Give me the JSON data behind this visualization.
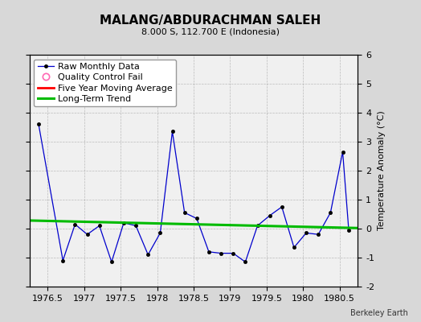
{
  "title": "MALANG/ABDURACHMAN SALEH",
  "subtitle": "8.000 S, 112.700 E (Indonesia)",
  "ylabel": "Temperature Anomaly (°C)",
  "credit": "Berkeley Earth",
  "xlim": [
    1976.25,
    1980.75
  ],
  "ylim": [
    -2,
    6
  ],
  "yticks": [
    -2,
    -1,
    0,
    1,
    2,
    3,
    4,
    5,
    6
  ],
  "xticks": [
    1976.5,
    1977,
    1977.5,
    1978,
    1978.5,
    1979,
    1979.5,
    1980,
    1980.5
  ],
  "background_color": "#d8d8d8",
  "plot_bg_color": "#f0f0f0",
  "raw_x": [
    1976.375,
    1976.708,
    1976.875,
    1977.042,
    1977.208,
    1977.375,
    1977.542,
    1977.708,
    1977.875,
    1978.042,
    1978.208,
    1978.375,
    1978.542,
    1978.708,
    1978.875,
    1979.042,
    1979.208,
    1979.375,
    1979.542,
    1979.708,
    1979.875,
    1980.042,
    1980.208,
    1980.375,
    1980.542,
    1980.625
  ],
  "raw_y": [
    3.6,
    -1.1,
    0.15,
    -0.2,
    0.1,
    -1.15,
    0.2,
    0.1,
    -0.9,
    -0.15,
    3.35,
    0.55,
    0.35,
    -0.8,
    -0.85,
    -0.85,
    -1.15,
    0.1,
    0.45,
    0.75,
    -0.65,
    -0.15,
    -0.2,
    0.55,
    2.65,
    -0.05
  ],
  "trend_x": [
    1976.25,
    1980.75
  ],
  "trend_y": [
    0.28,
    0.02
  ],
  "raw_color": "#0000cc",
  "trend_color": "#00bb00",
  "moving_avg_color": "#ff0000",
  "qc_color": "#ff69b4",
  "title_fontsize": 11,
  "subtitle_fontsize": 8,
  "tick_fontsize": 8,
  "ylabel_fontsize": 8,
  "legend_fontsize": 8,
  "credit_fontsize": 7
}
